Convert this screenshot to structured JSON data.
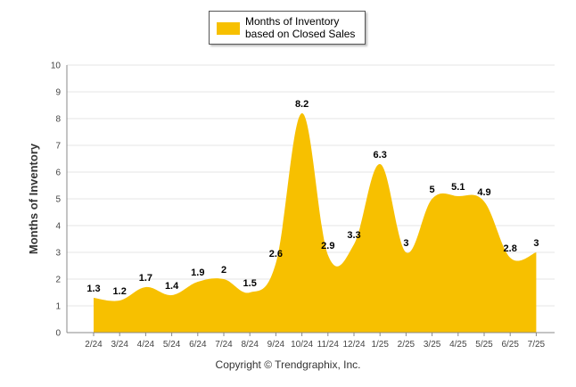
{
  "colors": {
    "series": "#F7C000",
    "grid": "#E6E6E6",
    "axis": "#888888"
  },
  "legend": {
    "label": "Months of Inventory based on Closed Sales"
  },
  "footer": {
    "copyright": "Copyright © Trendgraphix, Inc."
  },
  "chart_data": {
    "type": "area",
    "ylabel": "Months of Inventory",
    "xlabel": "",
    "ylim": [
      0,
      10
    ],
    "yticks": [
      0,
      1,
      2,
      3,
      4,
      5,
      6,
      7,
      8,
      9,
      10
    ],
    "grid": true,
    "legend_position": "top-center",
    "categories": [
      "2/24",
      "3/24",
      "4/24",
      "5/24",
      "6/24",
      "7/24",
      "8/24",
      "9/24",
      "10/24",
      "11/24",
      "12/24",
      "1/25",
      "2/25",
      "3/25",
      "4/25",
      "5/25",
      "6/25",
      "7/25"
    ],
    "series": [
      {
        "name": "Months of Inventory based on Closed Sales",
        "values": [
          1.3,
          1.2,
          1.7,
          1.4,
          1.9,
          2,
          1.5,
          2.6,
          8.2,
          2.9,
          3.3,
          6.3,
          3,
          5,
          5.1,
          4.9,
          2.8,
          3
        ]
      }
    ]
  }
}
